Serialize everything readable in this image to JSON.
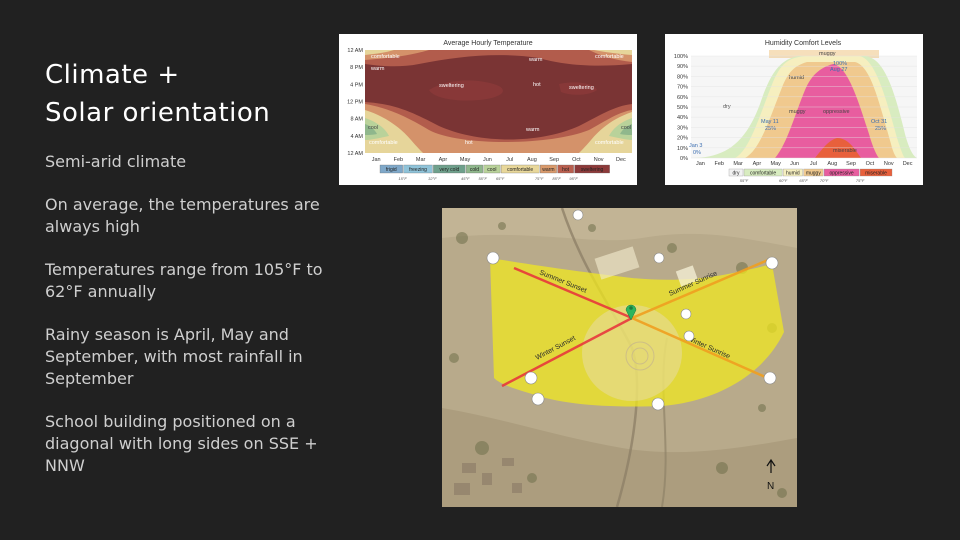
{
  "slide": {
    "title_line1": "Climate +",
    "title_line2": "Solar orientation",
    "bullets": [
      "Semi-arid climate",
      "On average, the temperatures are always high",
      "Temperatures range from 105°F to 62°F annually",
      "Rainy season is April, May and September, with most rainfall in September",
      "School building positioned on a diagonal with long sides on SSE + NNW"
    ]
  },
  "temp_chart": {
    "title": "Average Hourly Temperature",
    "y_ticks": [
      "12 AM",
      "8 PM",
      "4 PM",
      "12 PM",
      "8 AM",
      "4 AM",
      "12 AM"
    ],
    "months": [
      "Jan",
      "Feb",
      "Mar",
      "Apr",
      "May",
      "Jun",
      "Jul",
      "Aug",
      "Sep",
      "Oct",
      "Nov",
      "Dec"
    ],
    "zone_labels": {
      "comfortable_tl": "comfortable",
      "comfortable_tr": "comfortable",
      "warm_tl": "warm",
      "warm_top": "warm",
      "sweltering_1": "sweltering",
      "hot_top": "hot",
      "sweltering_2": "sweltering",
      "cool_l": "cool",
      "cool_r": "cool",
      "warm_bottom": "warm",
      "comfortable_bl": "comfortable",
      "hot_bottom": "hot",
      "comfortable_br": "comfortable"
    },
    "legend": [
      {
        "label": "frigid",
        "value": "15°F",
        "color": "#7fa8c9"
      },
      {
        "label": "freezing",
        "value": "32°F",
        "color": "#8fc3d9"
      },
      {
        "label": "very cold",
        "value": "45°F",
        "color": "#6fa08c"
      },
      {
        "label": "cold",
        "value": "55°F",
        "color": "#8fb78c"
      },
      {
        "label": "cool",
        "value": "65°F",
        "color": "#b9d29a"
      },
      {
        "label": "comfortable",
        "value": "75°F",
        "color": "#e8d79a"
      },
      {
        "label": "warm",
        "value": "85°F",
        "color": "#d99a6c"
      },
      {
        "label": "hot",
        "value": "95°F",
        "color": "#b95f4f"
      },
      {
        "label": "sweltering",
        "value": "",
        "color": "#8c3a3a"
      }
    ]
  },
  "hum_chart": {
    "title": "Humidity Comfort Levels",
    "y_ticks": [
      "100%",
      "90%",
      "80%",
      "70%",
      "60%",
      "50%",
      "40%",
      "30%",
      "20%",
      "10%",
      "0%"
    ],
    "months": [
      "Jan",
      "Feb",
      "Mar",
      "Apr",
      "May",
      "Jun",
      "Jul",
      "Aug",
      "Sep",
      "Oct",
      "Nov",
      "Dec"
    ],
    "labels": {
      "dry": "dry",
      "humid": "humid",
      "muggy": "muggy",
      "muggy_top": "muggy",
      "oppressive": "oppressive",
      "miserable": "miserable",
      "may": "May 11",
      "may_pct": "25%",
      "aug": "100%",
      "aug_date": "Aug 27",
      "oct": "Oct 31",
      "oct_pct": "25%",
      "jan": "Jan 3",
      "jan_pct": "0%"
    },
    "legend": [
      {
        "label": "dry",
        "value": "",
        "color": "#f2f2f2"
      },
      {
        "label": "comfortable",
        "value": "55°F",
        "color": "#d8ecc0"
      },
      {
        "label": "humid",
        "value": "60°F",
        "color": "#f6efbf"
      },
      {
        "label": "muggy",
        "value": "65°F",
        "color": "#f0c98e"
      },
      {
        "label": "oppressive",
        "value": "70°F",
        "color": "#e85d9f"
      },
      {
        "label": "miserable",
        "value": "75°F",
        "color": "#e8603c"
      }
    ]
  },
  "site_map": {
    "labels": {
      "summer_sunset": "Summer Sunset",
      "summer_sunrise": "Summer Sunrise",
      "winter_sunset": "Winter Sunset",
      "winter_sunrise": "Winter Sunrise",
      "north": "N"
    },
    "colors": {
      "solar_path": "#f2ea1c",
      "summer_line": "#f0a020",
      "winter_line": "#e8303a",
      "marker": "#2db55d"
    }
  }
}
